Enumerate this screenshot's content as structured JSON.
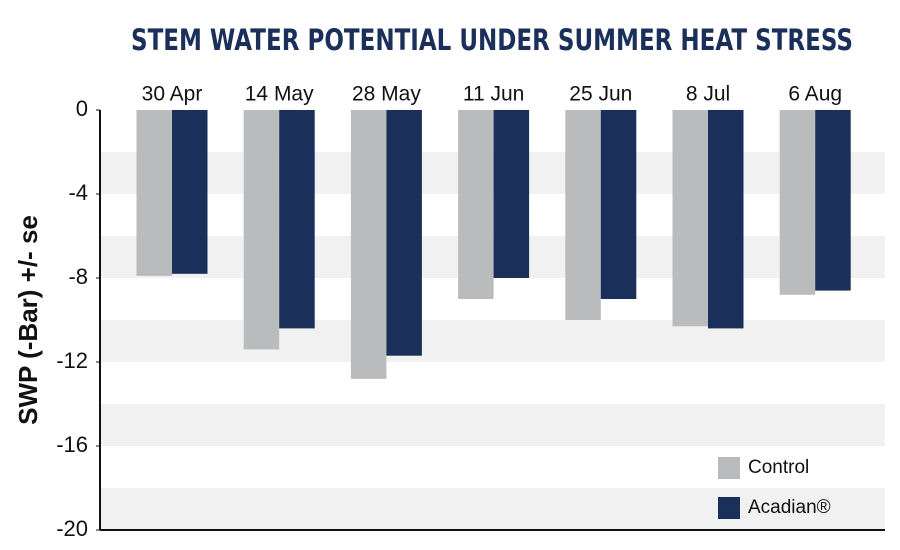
{
  "chart_data": {
    "type": "bar",
    "title": "STEM WATER POTENTIAL UNDER SUMMER HEAT STRESS",
    "y_label": "SWP (-Bar) +/- se",
    "categories": [
      "30 Apr",
      "14 May",
      "28 May",
      "11 Jun",
      "25 Jun",
      "8 Jul",
      "6 Aug"
    ],
    "series": [
      {
        "name": "Control",
        "color": "#b9bbbd",
        "values": [
          -7.9,
          -11.4,
          -12.8,
          -9.0,
          -10.0,
          -10.3,
          -8.8
        ]
      },
      {
        "name": "Acadian®",
        "color": "#1a2f5a",
        "values": [
          -7.8,
          -10.4,
          -11.7,
          -8.0,
          -9.0,
          -10.4,
          -8.6
        ]
      }
    ],
    "ylim": [
      -20,
      0
    ],
    "yticks": [
      0,
      -4,
      -8,
      -12,
      -16,
      -20
    ],
    "legend": "lower right"
  }
}
